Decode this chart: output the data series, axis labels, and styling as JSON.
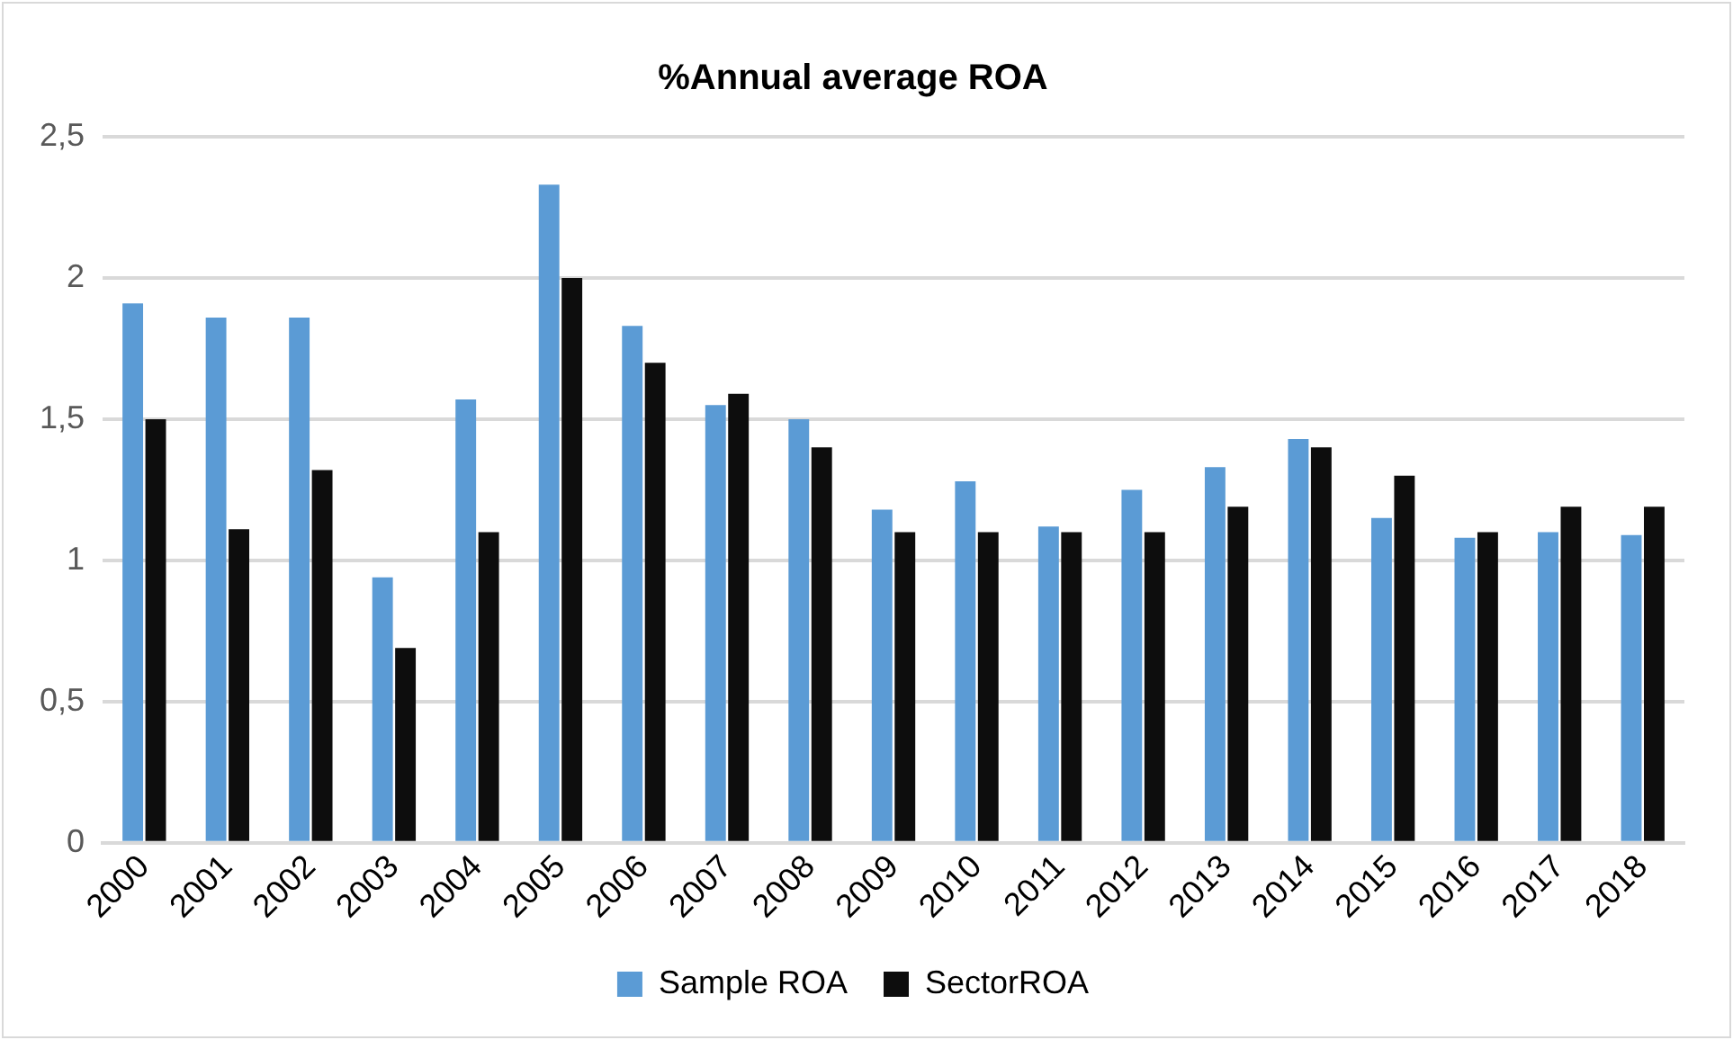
{
  "chart_data": {
    "type": "bar",
    "title": "%Annual average ROA",
    "categories": [
      "2000",
      "2001",
      "2002",
      "2003",
      "2004",
      "2005",
      "2006",
      "2007",
      "2008",
      "2009",
      "2010",
      "2011",
      "2012",
      "2013",
      "2014",
      "2015",
      "2016",
      "2017",
      "2018"
    ],
    "series": [
      {
        "name": "Sample ROA",
        "color": "#5b9bd5",
        "values": [
          1.91,
          1.86,
          1.86,
          0.94,
          1.57,
          2.33,
          1.83,
          1.55,
          1.5,
          1.18,
          1.28,
          1.12,
          1.25,
          1.33,
          1.43,
          1.15,
          1.08,
          1.1,
          1.09
        ]
      },
      {
        "name": "SectorROA",
        "color": "#0d0d0d",
        "values": [
          1.5,
          1.11,
          1.32,
          0.69,
          1.1,
          2.0,
          1.7,
          1.59,
          1.4,
          1.1,
          1.1,
          1.1,
          1.1,
          1.19,
          1.4,
          1.3,
          1.1,
          1.19,
          1.19
        ]
      }
    ],
    "ylim": [
      0,
      2.5
    ],
    "yticks": [
      0,
      {
        "value": 0.5,
        "label": "0,5"
      },
      1,
      {
        "value": 1.5,
        "label": "1,5"
      },
      2,
      {
        "value": 2.5,
        "label": "2,5"
      }
    ],
    "grid": "y",
    "legend": "bottom"
  }
}
